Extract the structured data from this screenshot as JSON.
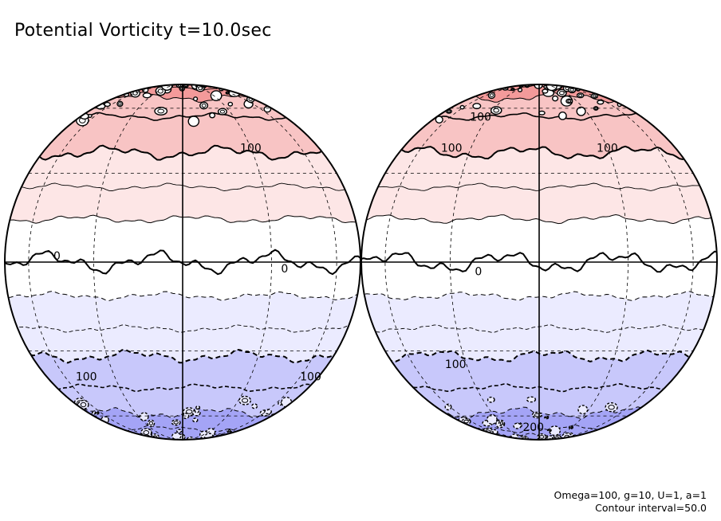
{
  "title": "Potential Vorticity t=10.0sec",
  "params": {
    "line1": "Omega=100, g=10, U=1, a=1",
    "line2": "Contour interval=50.0"
  },
  "colors": {
    "north_dark": "#f39a9a",
    "north_mid": "#f8c4c4",
    "north_light": "#fde6e6",
    "equator": "#ffffff",
    "south_light": "#ebebff",
    "south_mid": "#c8c8fb",
    "south_dark": "#a4a4f6",
    "line": "#000000"
  },
  "globes": [
    {
      "labels": [
        {
          "text": "100",
          "lat": 40,
          "lon": 30
        },
        {
          "text": "0",
          "lat": 2,
          "lon": -45
        },
        {
          "text": "0",
          "lat": -2,
          "lon": 35
        },
        {
          "text": "100",
          "lat": -40,
          "lon": -45
        },
        {
          "text": "100",
          "lat": -40,
          "lon": 70
        }
      ]
    },
    {
      "labels": [
        {
          "text": "100",
          "lat": 55,
          "lon": -35
        },
        {
          "text": "100",
          "lat": 40,
          "lon": -40
        },
        {
          "text": "100",
          "lat": 40,
          "lon": 30
        },
        {
          "text": "0",
          "lat": -3,
          "lon": -20
        },
        {
          "text": "100",
          "lat": -35,
          "lon": -35
        },
        {
          "text": "200",
          "lat": -68,
          "lon": -5
        }
      ]
    }
  ]
}
